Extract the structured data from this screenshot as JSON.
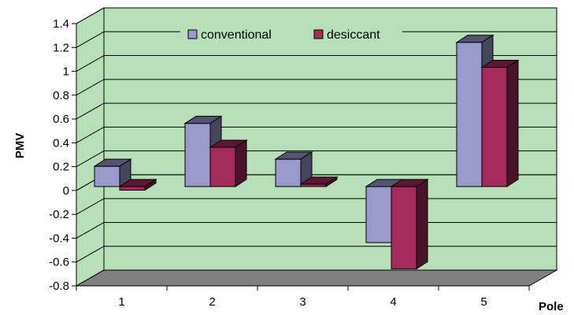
{
  "chart_data": {
    "type": "bar",
    "categories": [
      "1",
      "2",
      "3",
      "4",
      "5"
    ],
    "series": [
      {
        "name": "conventional",
        "values": [
          0.17,
          0.53,
          0.23,
          -0.47,
          1.21
        ],
        "color": "#9999cc"
      },
      {
        "name": "desiccant",
        "values": [
          -0.03,
          0.33,
          0.02,
          -0.69,
          1.0
        ],
        "color": "#a52a5c"
      }
    ],
    "xlabel": "Pole",
    "ylabel": "PMV",
    "ylim": [
      -0.8,
      1.4
    ],
    "yticks": [
      "1.4",
      "1.2",
      "1",
      "0.8",
      "0.6",
      "0.4",
      "0.2",
      "0",
      "-0.2",
      "-0.4",
      "-0.6",
      "-0.8"
    ],
    "grid": true,
    "legend_position": "top",
    "style": "3d-clustered-column",
    "colors": {
      "plot_background": "#b8e0b8",
      "floor": "#808080"
    }
  }
}
